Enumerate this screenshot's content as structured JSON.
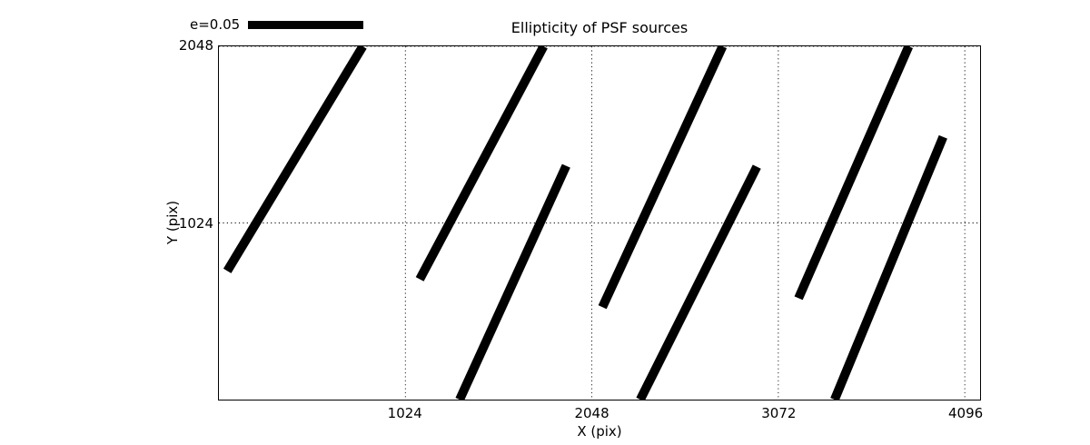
{
  "chart_data": {
    "type": "line",
    "subtype": "psf-ellipticity-whisker-plot",
    "title": "Ellipticity of PSF sources",
    "xlabel": "X (pix)",
    "ylabel": "Y (pix)",
    "xlim": [
      0,
      4180
    ],
    "ylim": [
      0,
      2048
    ],
    "xticks": [
      1024,
      2048,
      3072,
      4096
    ],
    "yticks": [
      1024,
      2048
    ],
    "grid": true,
    "grid_style": "dotted",
    "line_color": "#000000",
    "background_color": "#ffffff",
    "legend": {
      "label": "e=0.05",
      "position": "top-left-above-axes",
      "swatch": "thick-black-bar"
    },
    "segments": [
      {
        "x1": 46,
        "y1": 746,
        "x2": 790,
        "y2": 2048,
        "clipped": "top"
      },
      {
        "x1": 1103,
        "y1": 698,
        "x2": 1783,
        "y2": 2048,
        "clipped": "top"
      },
      {
        "x1": 1322,
        "y1": 0,
        "x2": 1907,
        "y2": 1355,
        "clipped": "bottom"
      },
      {
        "x1": 2106,
        "y1": 536,
        "x2": 2766,
        "y2": 2048,
        "clipped": "top"
      },
      {
        "x1": 2314,
        "y1": 0,
        "x2": 2954,
        "y2": 1350,
        "clipped": "bottom"
      },
      {
        "x1": 3183,
        "y1": 588,
        "x2": 3788,
        "y2": 2048,
        "clipped": "top"
      },
      {
        "x1": 3381,
        "y1": 0,
        "x2": 3977,
        "y2": 1523,
        "clipped": "bottom"
      }
    ]
  }
}
